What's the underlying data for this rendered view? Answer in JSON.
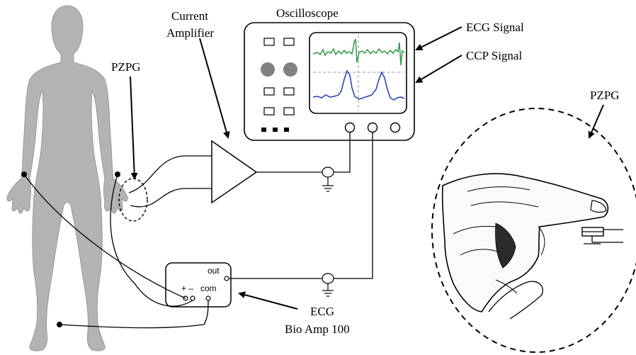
{
  "labels": {
    "current_amplifier_line1": "Current",
    "current_amplifier_line2": "Amplifier",
    "oscilloscope": "Oscilloscope",
    "ecg_signal": "ECG Signal",
    "ccp_signal": "CCP Signal",
    "pzpg_left": "PZPG",
    "pzpg_right": "PZPG",
    "ecg_line1": "ECG",
    "ecg_line2": "Bio Amp 100"
  },
  "bio_amp": {
    "out": "out",
    "plus_minus": "+ –",
    "com": "com"
  },
  "colors": {
    "body": "#b3b3b3",
    "ecg_trace": "#2e9a4a",
    "ccp_trace": "#2a46b8",
    "knob": "#808080"
  }
}
